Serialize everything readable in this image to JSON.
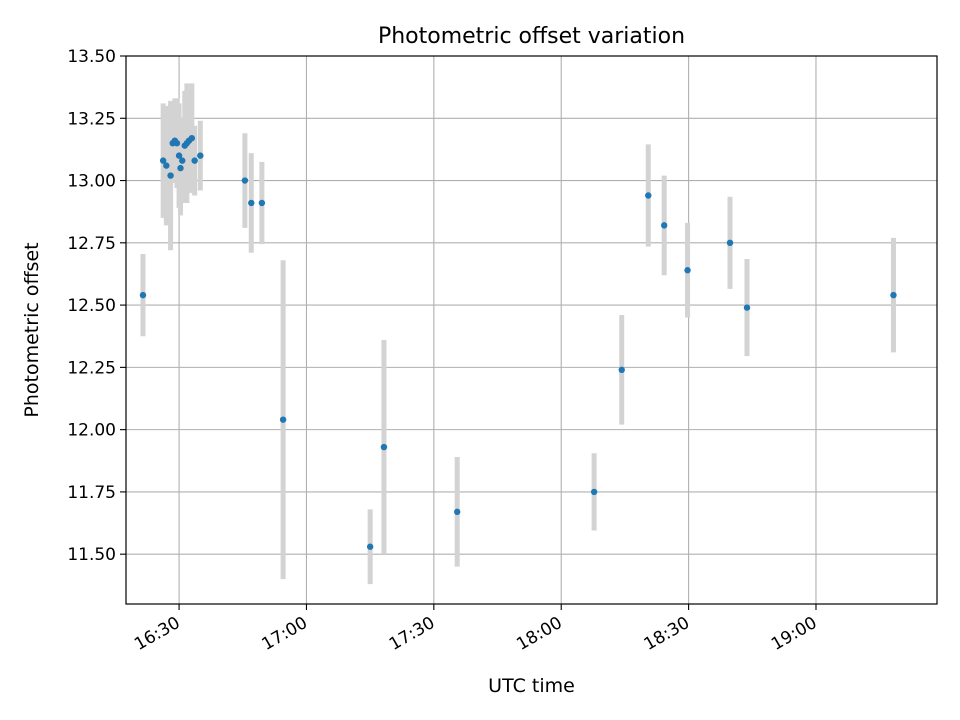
{
  "chart_data": {
    "type": "scatter",
    "title": "Photometric offset variation",
    "xlabel": "UTC time",
    "ylabel": "Photometric offset",
    "x_unit": "UTC time (HH:MM)",
    "xlim": [
      "16:17:30",
      "19:28:30"
    ],
    "ylim": [
      11.3,
      13.5
    ],
    "xticks": [
      "16:30",
      "17:00",
      "17:30",
      "18:00",
      "18:30",
      "19:00"
    ],
    "yticks": [
      "11.50",
      "11.75",
      "12.00",
      "12.25",
      "12.50",
      "12.75",
      "13.00",
      "13.25",
      "13.50"
    ],
    "grid": true,
    "colors": {
      "points": "#1f77b4",
      "errorbars": "#d3d3d3",
      "grid": "#b0b0b0"
    },
    "points": [
      {
        "x": "16:21:30",
        "y": 12.54,
        "err": 0.165
      },
      {
        "x": "16:26:15",
        "y": 13.08,
        "err": 0.23
      },
      {
        "x": "16:27:00",
        "y": 13.06,
        "err": 0.24
      },
      {
        "x": "16:28:00",
        "y": 13.02,
        "err": 0.3
      },
      {
        "x": "16:28:30",
        "y": 13.15,
        "err": 0.16
      },
      {
        "x": "16:29:00",
        "y": 13.16,
        "err": 0.17
      },
      {
        "x": "16:29:30",
        "y": 13.15,
        "err": 0.18
      },
      {
        "x": "16:30:00",
        "y": 13.1,
        "err": 0.21
      },
      {
        "x": "16:30:20",
        "y": 13.05,
        "err": 0.19
      },
      {
        "x": "16:30:45",
        "y": 13.08,
        "err": 0.17
      },
      {
        "x": "16:31:20",
        "y": 13.14,
        "err": 0.22
      },
      {
        "x": "16:31:50",
        "y": 13.15,
        "err": 0.24
      },
      {
        "x": "16:32:20",
        "y": 13.16,
        "err": 0.2
      },
      {
        "x": "16:33:00",
        "y": 13.17,
        "err": 0.22
      },
      {
        "x": "16:33:40",
        "y": 13.08,
        "err": 0.14
      },
      {
        "x": "16:35:00",
        "y": 13.1,
        "err": 0.14
      },
      {
        "x": "16:45:30",
        "y": 13.0,
        "err": 0.19
      },
      {
        "x": "16:47:00",
        "y": 12.91,
        "err": 0.2
      },
      {
        "x": "16:49:30",
        "y": 12.91,
        "err": 0.165
      },
      {
        "x": "16:54:30",
        "y": 12.04,
        "err": 0.64
      },
      {
        "x": "17:15:00",
        "y": 11.53,
        "err": 0.15
      },
      {
        "x": "17:18:15",
        "y": 11.93,
        "err": 0.43
      },
      {
        "x": "17:35:30",
        "y": 11.67,
        "err": 0.22
      },
      {
        "x": "18:07:45",
        "y": 11.75,
        "err": 0.155
      },
      {
        "x": "18:14:15",
        "y": 12.24,
        "err": 0.22
      },
      {
        "x": "18:20:30",
        "y": 12.94,
        "err": 0.205
      },
      {
        "x": "18:24:15",
        "y": 12.82,
        "err": 0.2
      },
      {
        "x": "18:29:45",
        "y": 12.64,
        "err": 0.19
      },
      {
        "x": "18:39:45",
        "y": 12.75,
        "err": 0.185
      },
      {
        "x": "18:43:45",
        "y": 12.49,
        "err": 0.195
      },
      {
        "x": "19:18:15",
        "y": 12.54,
        "err": 0.23
      }
    ]
  }
}
